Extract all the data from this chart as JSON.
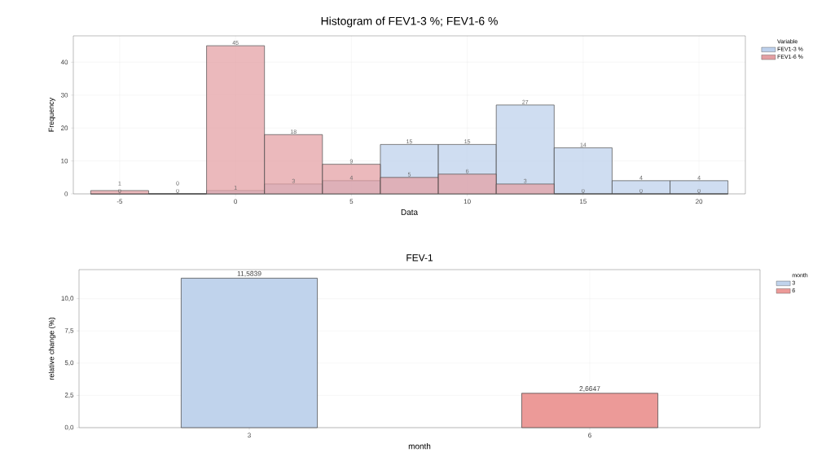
{
  "chart_data": [
    {
      "type": "histogram",
      "title": "Histogram of FEV1-3 %; FEV1-6 %",
      "xlabel": "Data",
      "ylabel": "Frequency",
      "legend_title": "Variable",
      "bins": [
        -6.25,
        -3.75,
        -1.25,
        1.25,
        3.75,
        6.25,
        8.75,
        11.25,
        13.75,
        16.25,
        18.75,
        21.25
      ],
      "series": [
        {
          "name": "FEV1-3 %",
          "color": "#bcd0ec",
          "values": [
            0,
            0,
            1,
            3,
            4,
            15,
            15,
            27,
            14,
            4,
            4
          ]
        },
        {
          "name": "FEV1-6 %",
          "color": "#e39ea2",
          "values": [
            1,
            0,
            45,
            18,
            9,
            5,
            6,
            3,
            0,
            0,
            0
          ]
        }
      ],
      "xlim": [
        -7,
        22
      ],
      "xticks": [
        -5,
        0,
        5,
        10,
        15,
        20
      ],
      "ylim": [
        0,
        48
      ],
      "yticks": [
        0,
        10,
        20,
        30,
        40
      ],
      "grid": true,
      "legend": "top right",
      "data_labels": true
    },
    {
      "type": "bar",
      "title": "FEV-1",
      "xlabel": "month",
      "ylabel": "relative change (%)",
      "legend_title": "month",
      "categories": [
        "3",
        "6"
      ],
      "series": [
        {
          "name": "3",
          "color": "#c0d3ec",
          "values": [
            11.5839,
            null
          ],
          "value_labels": [
            "11,5839",
            null
          ]
        },
        {
          "name": "6",
          "color": "#ec9a98",
          "values": [
            null,
            2.6647
          ],
          "value_labels": [
            null,
            "2,6647"
          ]
        }
      ],
      "ylim": [
        0,
        12.25
      ],
      "yticks": [
        {
          "value": 0,
          "label": "0,0"
        },
        {
          "value": 2.5,
          "label": "2,5"
        },
        {
          "value": 5,
          "label": "5,0"
        },
        {
          "value": 7.5,
          "label": "7,5"
        },
        {
          "value": 10,
          "label": "10,0"
        }
      ],
      "grid": true,
      "legend": "top right"
    }
  ]
}
